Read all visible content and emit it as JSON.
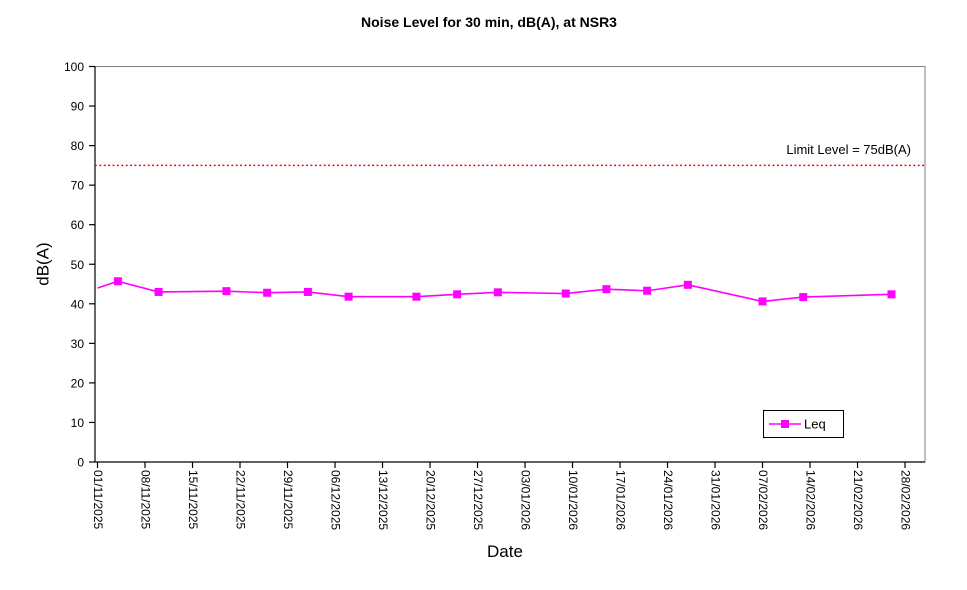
{
  "chart_data": {
    "type": "line",
    "title": "Noise Level for 30 min, dB(A), at NSR3",
    "xlabel": "Date",
    "ylabel": "dB(A)",
    "ylim": [
      0,
      100
    ],
    "ytick_step": 10,
    "yticks": [
      0,
      10,
      20,
      30,
      40,
      50,
      60,
      70,
      80,
      90,
      100
    ],
    "xticks": [
      "01/11/2025",
      "08/11/2025",
      "15/11/2025",
      "22/11/2025",
      "29/11/2025",
      "06/12/2025",
      "13/12/2025",
      "20/12/2025",
      "27/12/2025",
      "03/01/2026",
      "10/01/2026",
      "17/01/2026",
      "24/01/2026",
      "31/01/2026",
      "07/02/2026",
      "14/02/2026",
      "21/02/2026",
      "28/02/2026"
    ],
    "grid": false,
    "plot_border_color": "#808080",
    "axis_color": "#000000",
    "limit_line": {
      "label": "Limit Level  = 75dB(A)",
      "value": 75,
      "color": "#e00000",
      "style": "dotted"
    },
    "legend": {
      "position": "bottom-right",
      "entries": [
        "Leq"
      ]
    },
    "series": [
      {
        "name": "Leq",
        "color": "#ff00ff",
        "marker": "square",
        "points": [
          {
            "date": "01/11/2025",
            "value": 44.0,
            "marker": false
          },
          {
            "date": "04/11/2025",
            "value": 45.7
          },
          {
            "date": "10/11/2025",
            "value": 43.0
          },
          {
            "date": "20/11/2025",
            "value": 43.2
          },
          {
            "date": "26/11/2025",
            "value": 42.8
          },
          {
            "date": "02/12/2025",
            "value": 43.0
          },
          {
            "date": "08/12/2025",
            "value": 41.8
          },
          {
            "date": "18/12/2025",
            "value": 41.8
          },
          {
            "date": "24/12/2025",
            "value": 42.4
          },
          {
            "date": "30/12/2025",
            "value": 42.9
          },
          {
            "date": "09/01/2026",
            "value": 42.6
          },
          {
            "date": "15/01/2026",
            "value": 43.7
          },
          {
            "date": "21/01/2026",
            "value": 43.3
          },
          {
            "date": "27/01/2026",
            "value": 44.8
          },
          {
            "date": "07/02/2026",
            "value": 40.6
          },
          {
            "date": "13/02/2026",
            "value": 41.7
          },
          {
            "date": "26/02/2026",
            "value": 42.4
          }
        ]
      }
    ]
  }
}
